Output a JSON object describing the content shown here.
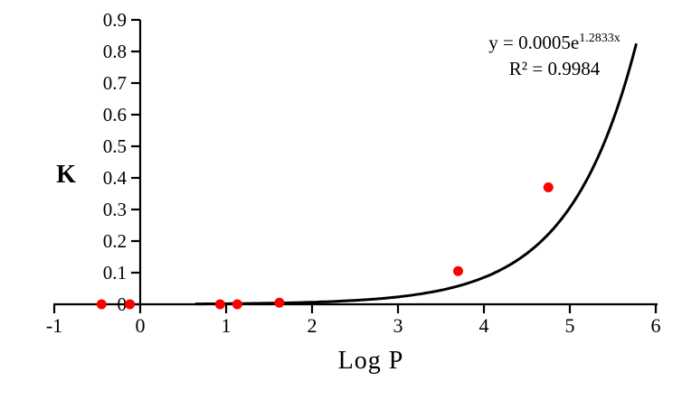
{
  "chart_data": {
    "type": "scatter",
    "title": "",
    "xlabel": "Log P",
    "ylabel": "K",
    "xlim": [
      -1,
      6
    ],
    "ylim": [
      0,
      0.9
    ],
    "grid": false,
    "x_ticks": [
      {
        "v": -1,
        "label": "-1"
      },
      {
        "v": 0,
        "label": "0"
      },
      {
        "v": 1,
        "label": "1"
      },
      {
        "v": 2,
        "label": "2"
      },
      {
        "v": 3,
        "label": "3"
      },
      {
        "v": 4,
        "label": "4"
      },
      {
        "v": 5,
        "label": "5"
      },
      {
        "v": 6,
        "label": "6"
      }
    ],
    "y_ticks": [
      {
        "v": 0,
        "label": "0"
      },
      {
        "v": 0.1,
        "label": "0.1"
      },
      {
        "v": 0.2,
        "label": "0.2"
      },
      {
        "v": 0.3,
        "label": "0.3"
      },
      {
        "v": 0.4,
        "label": "0.4"
      },
      {
        "v": 0.5,
        "label": "0.5"
      },
      {
        "v": 0.6,
        "label": "0.6"
      },
      {
        "v": 0.7,
        "label": "0.7"
      },
      {
        "v": 0.8,
        "label": "0.8"
      },
      {
        "v": 0.9,
        "label": "0.9"
      }
    ],
    "points": [
      {
        "x": -0.45,
        "y": 0
      },
      {
        "x": -0.12,
        "y": 0
      },
      {
        "x": 0.93,
        "y": 0
      },
      {
        "x": 1.13,
        "y": 0
      },
      {
        "x": 1.62,
        "y": 0.005
      },
      {
        "x": 3.7,
        "y": 0.105
      },
      {
        "x": 4.75,
        "y": 0.37
      }
    ],
    "trendline": {
      "model": "exponential",
      "a": 0.0005,
      "b": 1.2833,
      "x_start": 0.65,
      "x_end": 5.78,
      "equation_base": "y = 0.0005e",
      "equation_exponent": "1.2833x",
      "r2_label": "R² = 0.9984"
    },
    "colors": {
      "point": "#fe0000",
      "line": "#000000",
      "axis": "#000000",
      "text": "#000000",
      "background": "#ffffff"
    }
  }
}
